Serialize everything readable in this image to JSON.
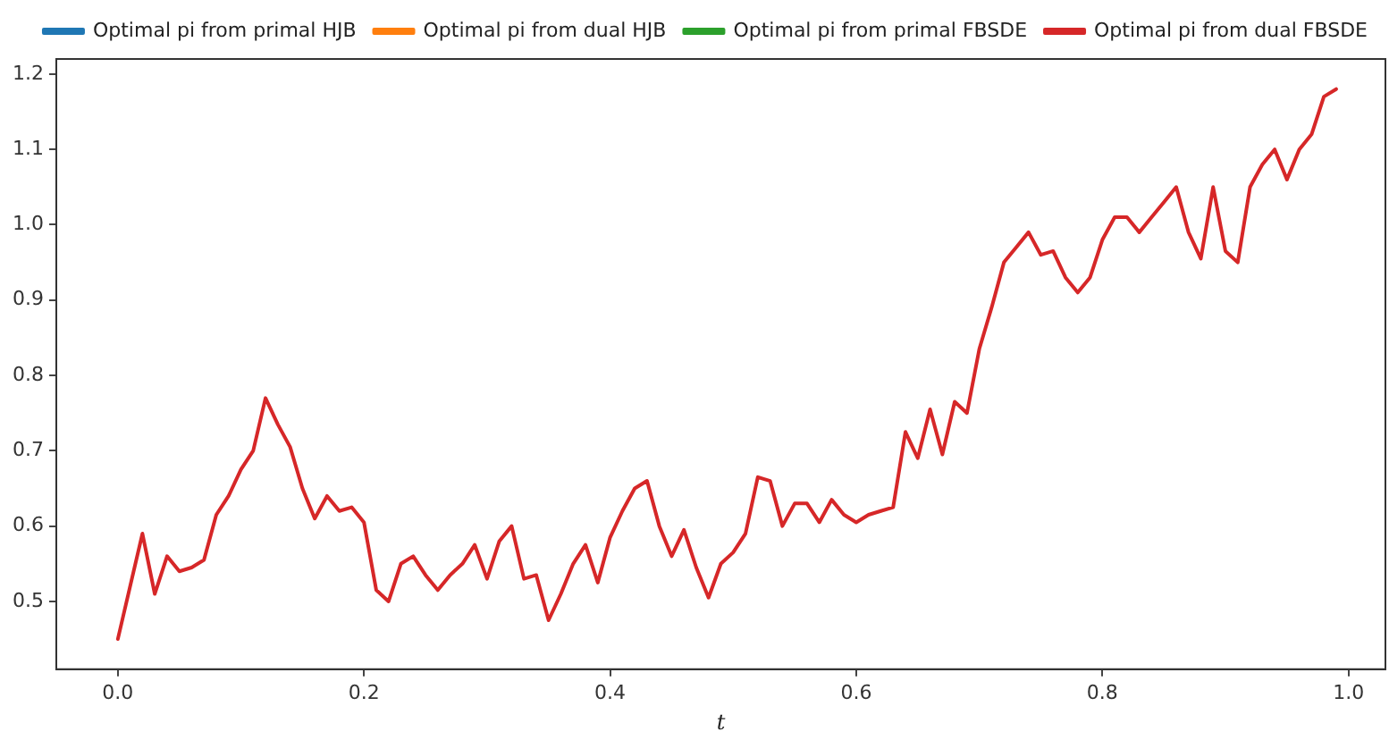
{
  "chart_data": {
    "type": "line",
    "xlabel": "t",
    "x": [
      0,
      0.01,
      0.02,
      0.03,
      0.04,
      0.05,
      0.06,
      0.07,
      0.08,
      0.09,
      0.1,
      0.11,
      0.12,
      0.13,
      0.14,
      0.15,
      0.16,
      0.17,
      0.18,
      0.19,
      0.2,
      0.21,
      0.22,
      0.23,
      0.24,
      0.25,
      0.26,
      0.27,
      0.28,
      0.29,
      0.3,
      0.31,
      0.32,
      0.33,
      0.34,
      0.35,
      0.36,
      0.37,
      0.38,
      0.39,
      0.4,
      0.41,
      0.42,
      0.43,
      0.44,
      0.45,
      0.46,
      0.47,
      0.48,
      0.49,
      0.5,
      0.51,
      0.52,
      0.53,
      0.54,
      0.55,
      0.56,
      0.57,
      0.58,
      0.59,
      0.6,
      0.61,
      0.62,
      0.63,
      0.64,
      0.65,
      0.66,
      0.67,
      0.68,
      0.69,
      0.7,
      0.71,
      0.72,
      0.73,
      0.74,
      0.75,
      0.76,
      0.77,
      0.78,
      0.79,
      0.8,
      0.81,
      0.82,
      0.83,
      0.84,
      0.85,
      0.86,
      0.87,
      0.88,
      0.89,
      0.9,
      0.91,
      0.92,
      0.93,
      0.94,
      0.95,
      0.96,
      0.97,
      0.98,
      0.99
    ],
    "series": [
      {
        "name": "Optimal pi from primal HJB",
        "color": "#1f77b4",
        "values": [
          null,
          null,
          null,
          null,
          null,
          null,
          null,
          null,
          null,
          null,
          null,
          null,
          null,
          null,
          null,
          null,
          null,
          null,
          null,
          null,
          null,
          null,
          null,
          null,
          null,
          null,
          null,
          null,
          null,
          null,
          null,
          null,
          null,
          null,
          null,
          null,
          null,
          null,
          null,
          null,
          null,
          null,
          null,
          null,
          null,
          null,
          null,
          null,
          null,
          null,
          null,
          null,
          null,
          null,
          null,
          null,
          null,
          null,
          null,
          null,
          null,
          null,
          null,
          null,
          null,
          null,
          null,
          null,
          null,
          null,
          null,
          null,
          null,
          null,
          null,
          null,
          null,
          null,
          null,
          null,
          null,
          null,
          null,
          null,
          null,
          null,
          null,
          null,
          null,
          null,
          null,
          null,
          null,
          null,
          null,
          null,
          null,
          null,
          null,
          null
        ]
      },
      {
        "name": "Optimal pi from dual HJB",
        "color": "#ff7f0e",
        "values": [
          null,
          null,
          null,
          null,
          null,
          null,
          null,
          null,
          null,
          null,
          null,
          null,
          null,
          null,
          null,
          null,
          null,
          null,
          null,
          null,
          null,
          null,
          null,
          null,
          null,
          null,
          null,
          null,
          null,
          null,
          null,
          null,
          null,
          null,
          null,
          null,
          null,
          null,
          null,
          null,
          null,
          null,
          null,
          null,
          null,
          null,
          null,
          null,
          null,
          null,
          null,
          null,
          null,
          null,
          null,
          null,
          null,
          null,
          null,
          null,
          null,
          null,
          null,
          null,
          null,
          null,
          null,
          null,
          null,
          null,
          null,
          null,
          null,
          null,
          null,
          null,
          null,
          null,
          null,
          null,
          null,
          null,
          null,
          null,
          null,
          null,
          null,
          null,
          null,
          null,
          null,
          null,
          null,
          null,
          null,
          null,
          null,
          null,
          null,
          null
        ]
      },
      {
        "name": "Optimal pi from primal FBSDE",
        "color": "#2ca02c",
        "values": [
          null,
          null,
          null,
          null,
          null,
          null,
          null,
          null,
          null,
          null,
          null,
          null,
          null,
          null,
          null,
          null,
          null,
          null,
          null,
          null,
          null,
          null,
          null,
          null,
          null,
          null,
          null,
          null,
          null,
          null,
          null,
          null,
          null,
          null,
          null,
          null,
          null,
          null,
          null,
          null,
          null,
          null,
          null,
          null,
          null,
          null,
          null,
          null,
          null,
          null,
          null,
          null,
          null,
          null,
          null,
          null,
          null,
          null,
          null,
          null,
          null,
          null,
          null,
          null,
          null,
          null,
          null,
          null,
          null,
          null,
          null,
          null,
          null,
          null,
          null,
          null,
          null,
          null,
          null,
          null,
          null,
          null,
          null,
          null,
          null,
          null,
          null,
          null,
          null,
          null,
          null,
          null,
          null,
          null,
          null,
          null,
          null,
          null,
          null,
          null
        ]
      },
      {
        "name": "Optimal pi from dual FBSDE",
        "color": "#d62728",
        "values": [
          0.45,
          0.52,
          0.59,
          0.51,
          0.56,
          0.54,
          0.545,
          0.555,
          0.615,
          0.64,
          0.675,
          0.7,
          0.77,
          0.735,
          0.705,
          0.65,
          0.61,
          0.64,
          0.62,
          0.625,
          0.605,
          0.515,
          0.5,
          0.55,
          0.56,
          0.535,
          0.515,
          0.535,
          0.55,
          0.575,
          0.53,
          0.58,
          0.6,
          0.53,
          0.535,
          0.475,
          0.51,
          0.55,
          0.575,
          0.525,
          0.585,
          0.62,
          0.65,
          0.66,
          0.6,
          0.56,
          0.595,
          0.545,
          0.505,
          0.55,
          0.565,
          0.59,
          0.665,
          0.66,
          0.6,
          0.63,
          0.63,
          0.605,
          0.635,
          0.615,
          0.605,
          0.615,
          0.62,
          0.625,
          0.725,
          0.69,
          0.755,
          0.695,
          0.765,
          0.75,
          0.835,
          0.89,
          0.95,
          0.97,
          0.99,
          0.96,
          0.965,
          0.93,
          0.91,
          0.93,
          0.98,
          1.01,
          1.01,
          0.99,
          1.01,
          1.03,
          1.05,
          0.99,
          0.955,
          1.05,
          0.965,
          0.95,
          1.05,
          1.08,
          1.1,
          1.06,
          1.1,
          1.12,
          1.17,
          1.18
        ]
      }
    ],
    "xlim": [
      -0.05,
      1.03
    ],
    "xticks": [
      {
        "value": 0,
        "label": "0.0"
      },
      0.2,
      0.4,
      0.6,
      0.8,
      {
        "value": 1,
        "label": "1.0"
      }
    ],
    "ylim": [
      0.41,
      1.22
    ],
    "yticks": [
      0.5,
      0.6,
      0.7,
      0.8,
      0.9,
      {
        "value": 1,
        "label": "1.0"
      },
      1.1,
      1.2
    ],
    "grid": false,
    "legend": "top right",
    "marker": "none",
    "line_style": "solid"
  }
}
